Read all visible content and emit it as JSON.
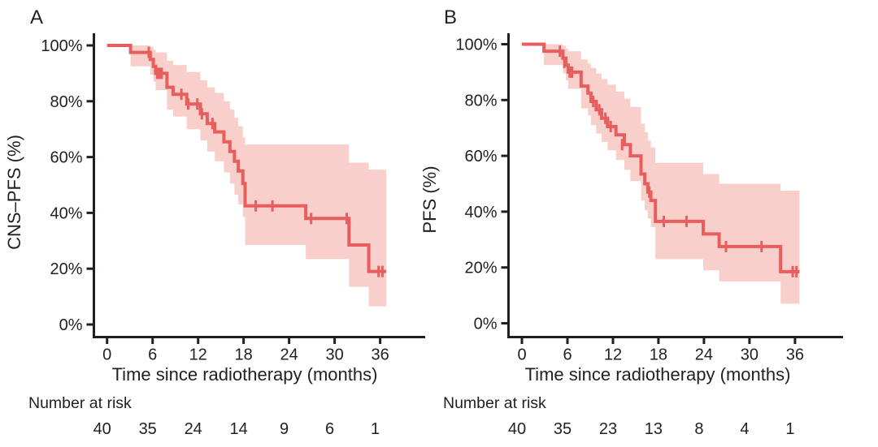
{
  "figure": {
    "background": "#ffffff",
    "curve_color": "#e85d5d",
    "band_color": "#f8cfca",
    "axis_color": "#231f20",
    "text_color": "#231f20"
  },
  "chart_data": [
    {
      "type": "line",
      "subtype": "kaplan-meier-step",
      "panel_label": "A",
      "ylabel": "CNS–PFS (%)",
      "xlabel": "Time since radiotherapy (months)",
      "xlim": [
        0,
        42
      ],
      "ylim": [
        0,
        100
      ],
      "x_ticks": [
        0,
        6,
        12,
        18,
        24,
        30,
        36
      ],
      "x_tick_labels": [
        "0",
        "6",
        "12",
        "18",
        "24",
        "30",
        "36"
      ],
      "y_ticks_pct": [
        0,
        20,
        40,
        60,
        80,
        100
      ],
      "y_tick_labels": [
        "0%",
        "20%",
        "40%",
        "60%",
        "80%",
        "100%"
      ],
      "grid": false,
      "legend": "none",
      "risk_label": "Number at risk",
      "risk_times": [
        0,
        6,
        12,
        18,
        24,
        30,
        36
      ],
      "number_at_risk": [
        40,
        35,
        24,
        14,
        9,
        6,
        1
      ],
      "end_time": 36.8,
      "steps": [
        [
          0,
          100
        ],
        [
          3.1,
          97.5
        ],
        [
          5.7,
          95
        ],
        [
          6.1,
          92.5
        ],
        [
          6.4,
          90
        ],
        [
          7.9,
          85
        ],
        [
          8.7,
          82.5
        ],
        [
          10.5,
          79
        ],
        [
          12.3,
          75.5
        ],
        [
          13.2,
          72
        ],
        [
          14.2,
          69
        ],
        [
          15.4,
          65.5
        ],
        [
          16.2,
          62
        ],
        [
          16.8,
          58.5
        ],
        [
          17.3,
          55
        ],
        [
          17.9,
          50.5
        ],
        [
          18.2,
          42.5
        ],
        [
          26.2,
          38
        ],
        [
          31.9,
          28.5
        ],
        [
          34.5,
          19
        ]
      ],
      "censors": [
        [
          5.5,
          97.5
        ],
        [
          6.6,
          90
        ],
        [
          6.9,
          90
        ],
        [
          7.2,
          90
        ],
        [
          9.8,
          82.5
        ],
        [
          10.7,
          79
        ],
        [
          11.9,
          79
        ],
        [
          12.5,
          75.5
        ],
        [
          13.9,
          72
        ],
        [
          19.6,
          42.5
        ],
        [
          21.8,
          42.5
        ],
        [
          26.9,
          38
        ],
        [
          31.6,
          38
        ],
        [
          35.8,
          19
        ],
        [
          36.3,
          19
        ]
      ],
      "band": [
        [
          0,
          100,
          100
        ],
        [
          3.1,
          100,
          92.5
        ],
        [
          5.7,
          99.5,
          89.5
        ],
        [
          6.1,
          98.5,
          87
        ],
        [
          6.4,
          97.5,
          84
        ],
        [
          7.9,
          94.5,
          77
        ],
        [
          8.7,
          93,
          74.5
        ],
        [
          10.5,
          90.5,
          70
        ],
        [
          12.3,
          87.5,
          66
        ],
        [
          13.2,
          85,
          62
        ],
        [
          14.2,
          83,
          58.5
        ],
        [
          15.4,
          80,
          54.5
        ],
        [
          16.2,
          77,
          50.5
        ],
        [
          16.8,
          74,
          46.5
        ],
        [
          17.3,
          71,
          43
        ],
        [
          17.9,
          67,
          38.5
        ],
        [
          18.2,
          64.5,
          28.5
        ],
        [
          26.2,
          64.5,
          23.5
        ],
        [
          31.9,
          58,
          13.5
        ],
        [
          34.5,
          55.5,
          6.5
        ]
      ]
    },
    {
      "type": "line",
      "subtype": "kaplan-meier-step",
      "panel_label": "B",
      "ylabel": "PFS (%)",
      "xlabel": "Time since radiotherapy (months)",
      "xlim": [
        0,
        42
      ],
      "ylim": [
        0,
        100
      ],
      "x_ticks": [
        0,
        6,
        12,
        18,
        24,
        30,
        36
      ],
      "x_tick_labels": [
        "0",
        "6",
        "12",
        "18",
        "24",
        "30",
        "36"
      ],
      "y_ticks_pct": [
        0,
        20,
        40,
        60,
        80,
        100
      ],
      "y_tick_labels": [
        "0%",
        "20%",
        "40%",
        "60%",
        "80%",
        "100%"
      ],
      "grid": false,
      "legend": "none",
      "risk_label": "Number at risk",
      "risk_times": [
        0,
        6,
        12,
        18,
        24,
        30,
        36
      ],
      "number_at_risk": [
        40,
        35,
        23,
        13,
        8,
        4,
        1
      ],
      "end_time": 36.6,
      "steps": [
        [
          0,
          100
        ],
        [
          2.9,
          97.5
        ],
        [
          5.4,
          95
        ],
        [
          5.8,
          92.5
        ],
        [
          6.1,
          90
        ],
        [
          7.8,
          85
        ],
        [
          8.7,
          82.5
        ],
        [
          9.1,
          79.5
        ],
        [
          9.8,
          76.5
        ],
        [
          10.5,
          73.5
        ],
        [
          11.3,
          70.5
        ],
        [
          12.4,
          67.5
        ],
        [
          13.5,
          64
        ],
        [
          14.3,
          60
        ],
        [
          15.7,
          53.5
        ],
        [
          16.2,
          50
        ],
        [
          16.6,
          47
        ],
        [
          17.0,
          44
        ],
        [
          17.6,
          36.5
        ],
        [
          23.9,
          32
        ],
        [
          26.0,
          27.5
        ],
        [
          34.1,
          18.5
        ]
      ],
      "censors": [
        [
          5.0,
          97.5
        ],
        [
          5.6,
          93.5
        ],
        [
          6.3,
          90
        ],
        [
          6.6,
          90
        ],
        [
          9.4,
          79.5
        ],
        [
          10.2,
          76.5
        ],
        [
          11.0,
          73.5
        ],
        [
          11.7,
          70.5
        ],
        [
          13.2,
          64
        ],
        [
          16.8,
          47
        ],
        [
          18.7,
          36.5
        ],
        [
          21.7,
          36.5
        ],
        [
          26.9,
          27.5
        ],
        [
          31.6,
          27.5
        ],
        [
          35.7,
          18.5
        ],
        [
          36.2,
          18.5
        ]
      ],
      "band": [
        [
          0,
          100,
          100
        ],
        [
          2.9,
          100,
          92.5
        ],
        [
          5.4,
          99.5,
          89.5
        ],
        [
          5.8,
          98.5,
          87
        ],
        [
          6.1,
          97.5,
          84
        ],
        [
          7.8,
          94.5,
          77
        ],
        [
          8.7,
          93,
          74.5
        ],
        [
          9.1,
          91.5,
          71
        ],
        [
          9.8,
          89.5,
          68
        ],
        [
          10.5,
          87.5,
          65
        ],
        [
          11.3,
          85.5,
          62
        ],
        [
          12.4,
          83,
          58.5
        ],
        [
          13.5,
          80.5,
          55
        ],
        [
          14.3,
          77.5,
          51
        ],
        [
          15.7,
          71.5,
          44
        ],
        [
          16.2,
          68.5,
          40.5
        ],
        [
          16.6,
          65.5,
          37.5
        ],
        [
          17.0,
          63,
          34.5
        ],
        [
          17.6,
          57.5,
          23
        ],
        [
          23.9,
          53.5,
          19
        ],
        [
          26.0,
          50,
          15
        ],
        [
          34.1,
          47.5,
          7
        ]
      ]
    }
  ]
}
